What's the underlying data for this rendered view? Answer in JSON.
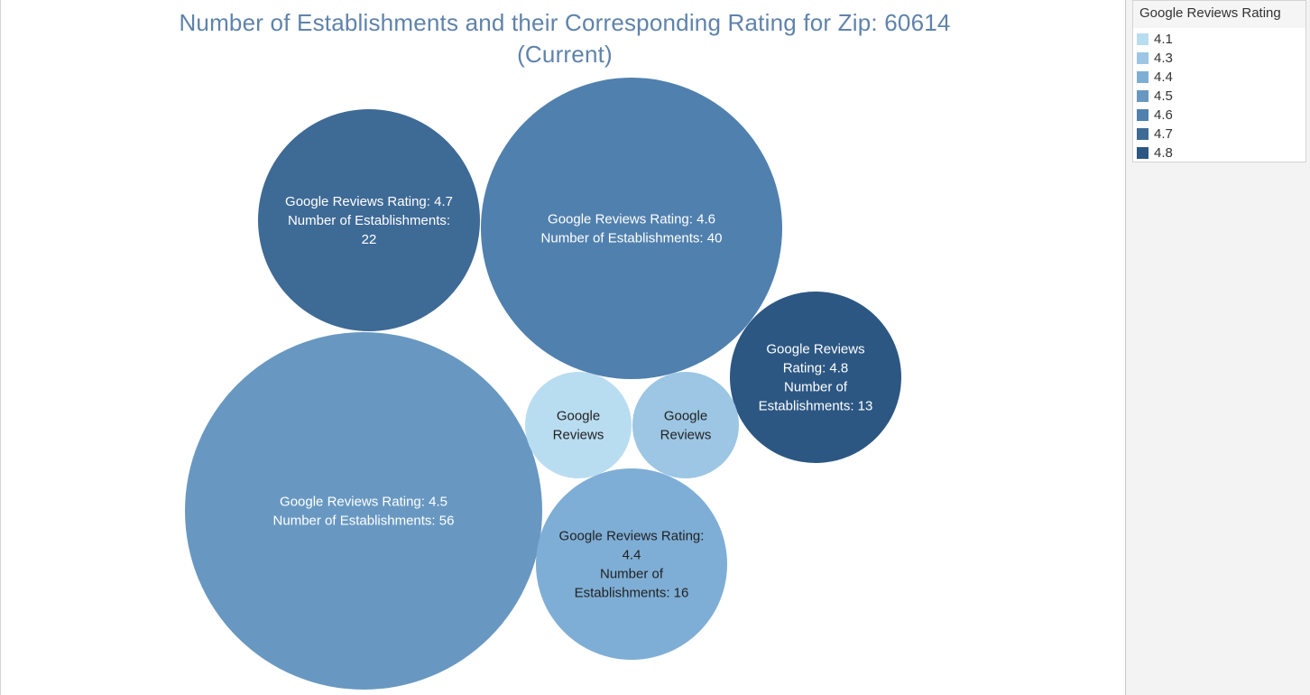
{
  "chart_data": {
    "type": "packed-bubble",
    "title": "Number of Establishments and their Corresponding Rating for Zip: 60614\n(Current)",
    "legend": {
      "title": "Google Reviews Rating",
      "placement": "top-right",
      "items": [
        {
          "label": "4.1",
          "color": "#b9ddf0"
        },
        {
          "label": "4.3",
          "color": "#9cc6e3"
        },
        {
          "label": "4.4",
          "color": "#7eaed6"
        },
        {
          "label": "4.5",
          "color": "#6898c1"
        },
        {
          "label": "4.6",
          "color": "#5080ae"
        },
        {
          "label": "4.7",
          "color": "#3e6a96"
        },
        {
          "label": "4.8",
          "color": "#2c5783"
        }
      ]
    },
    "bubbles": [
      {
        "rating": "4.5",
        "count": 56,
        "label_lines": [
          "Google Reviews Rating: 4.5",
          "Number of Establishments:  56"
        ],
        "text_color": "#ffffff"
      },
      {
        "rating": "4.6",
        "count": 40,
        "label_lines": [
          "Google Reviews Rating: 4.6",
          "Number of Establishments:  40"
        ],
        "text_color": "#ffffff"
      },
      {
        "rating": "4.7",
        "count": 22,
        "label_lines": [
          "Google Reviews Rating: 4.7",
          "Number of Establishments:",
          "22"
        ],
        "text_color": "#ffffff"
      },
      {
        "rating": "4.4",
        "count": 16,
        "label_lines": [
          "Google Reviews Rating:",
          "4.4",
          "Number of",
          "Establishments:  16"
        ],
        "text_color": "#222222"
      },
      {
        "rating": "4.8",
        "count": 13,
        "label_lines": [
          "Google Reviews",
          "Rating: 4.8",
          "Number of",
          "Establishments:  13"
        ],
        "text_color": "#ffffff"
      },
      {
        "rating": "4.1",
        "count": null,
        "label_lines": [
          "Google",
          "Reviews"
        ],
        "text_color": "#222222"
      },
      {
        "rating": "4.3",
        "count": null,
        "label_lines": [
          "Google",
          "Reviews"
        ],
        "text_color": "#222222"
      }
    ]
  }
}
